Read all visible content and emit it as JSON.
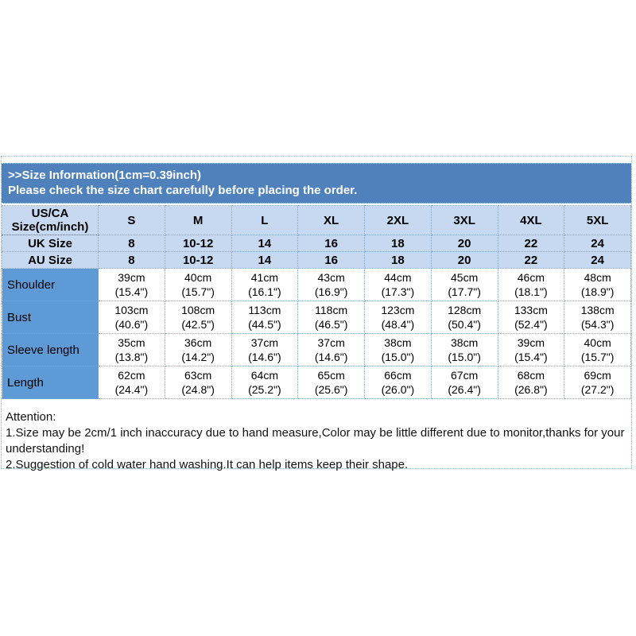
{
  "colors": {
    "banner_bg": "#4f81bd",
    "banner_text": "#ffffff",
    "light_row_bg": "#c6d9f0",
    "label_col_bg": "#5e9ad6",
    "dotted_grid": "#7fa8d9",
    "text": "#000000"
  },
  "banner": {
    "line1": ">>Size Information(1cm=0.39inch)",
    "line2": "Please check the size chart carefully before placing the order."
  },
  "table": {
    "corner": {
      "line1": "US/CA",
      "line2": "Size(cm/inch)"
    },
    "sizes": [
      "S",
      "M",
      "L",
      "XL",
      "2XL",
      "3XL",
      "4XL",
      "5XL"
    ],
    "conversion_rows": [
      {
        "label": "UK Size",
        "values": [
          "8",
          "10-12",
          "14",
          "16",
          "18",
          "20",
          "22",
          "24"
        ]
      },
      {
        "label": "AU Size",
        "values": [
          "8",
          "10-12",
          "14",
          "16",
          "18",
          "20",
          "22",
          "24"
        ]
      }
    ],
    "measurements": [
      {
        "label": "Shoulder",
        "cells": [
          {
            "cm": "39cm",
            "in": "(15.4\")"
          },
          {
            "cm": "40cm",
            "in": "(15.7\")"
          },
          {
            "cm": "41cm",
            "in": "(16.1\")"
          },
          {
            "cm": "43cm",
            "in": "(16.9\")"
          },
          {
            "cm": "44cm",
            "in": "(17.3\")"
          },
          {
            "cm": "45cm",
            "in": "(17.7\")"
          },
          {
            "cm": "46cm",
            "in": "(18.1\")"
          },
          {
            "cm": "48cm",
            "in": "(18.9\")"
          }
        ]
      },
      {
        "label": "Bust",
        "cells": [
          {
            "cm": "103cm",
            "in": "(40.6\")"
          },
          {
            "cm": "108cm",
            "in": "(42.5\")"
          },
          {
            "cm": "113cm",
            "in": "(44.5\")"
          },
          {
            "cm": "118cm",
            "in": "(46.5\")"
          },
          {
            "cm": "123cm",
            "in": "(48.4\")"
          },
          {
            "cm": "128cm",
            "in": "(50.4\")"
          },
          {
            "cm": "133cm",
            "in": "(52.4\")"
          },
          {
            "cm": "138cm",
            "in": "(54.3\")"
          }
        ]
      },
      {
        "label": "Sleeve length",
        "cells": [
          {
            "cm": "35cm",
            "in": "(13.8\")"
          },
          {
            "cm": "36cm",
            "in": "(14.2\")"
          },
          {
            "cm": "37cm",
            "in": "(14.6\")"
          },
          {
            "cm": "37cm",
            "in": "(14.6\")"
          },
          {
            "cm": "38cm",
            "in": "(15.0\")"
          },
          {
            "cm": "38cm",
            "in": "(15.0\")"
          },
          {
            "cm": "39cm",
            "in": "(15.4\")"
          },
          {
            "cm": "40cm",
            "in": "(15.7\")"
          }
        ]
      },
      {
        "label": "Length",
        "cells": [
          {
            "cm": "62cm",
            "in": "(24.4\")"
          },
          {
            "cm": "63cm",
            "in": "(24.8\")"
          },
          {
            "cm": "64cm",
            "in": "(25.2\")"
          },
          {
            "cm": "65cm",
            "in": "(25.6\")"
          },
          {
            "cm": "66cm",
            "in": "(26.0\")"
          },
          {
            "cm": "67cm",
            "in": "(26.4\")"
          },
          {
            "cm": "68cm",
            "in": "(26.8\")"
          },
          {
            "cm": "69cm",
            "in": "(27.2\")"
          }
        ]
      }
    ]
  },
  "attention": {
    "title": "Attention:",
    "lines": [
      "1.Size may be 2cm/1 inch inaccuracy due to hand measure,Color may be little different due to monitor,thanks for your understanding!",
      "2.Suggestion of cold water hand washing.It can help items keep their shape."
    ]
  }
}
